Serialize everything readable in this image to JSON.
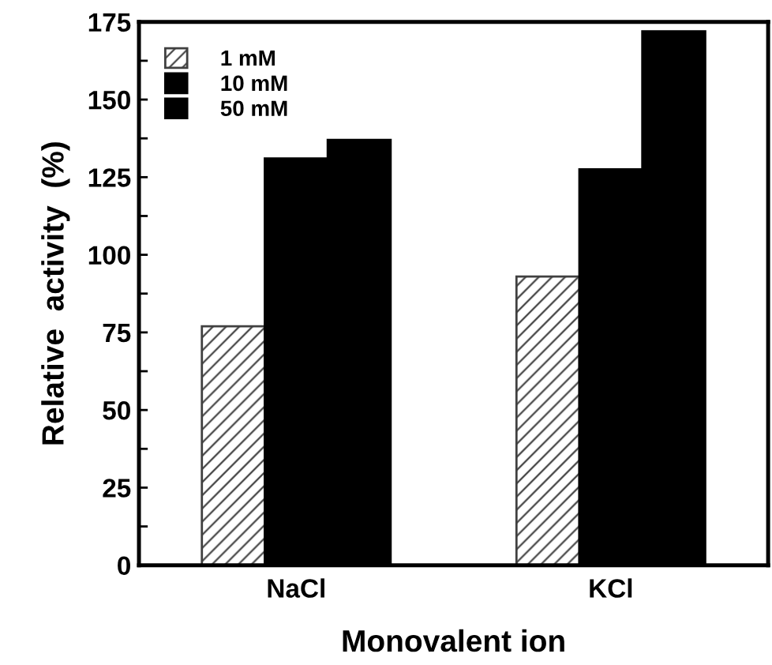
{
  "chart_data": {
    "type": "bar",
    "xlabel": "Monovalent ion",
    "ylabel": "Relative  activity  (%)",
    "categories": [
      "NaCl",
      "KCl"
    ],
    "series": [
      {
        "name": "1 mM",
        "color": "#404040",
        "values": [
          77,
          93
        ]
      },
      {
        "name": "10 mM",
        "color": "#000000",
        "values": [
          131,
          127.5
        ]
      },
      {
        "name": "50 mM",
        "color": "#000000",
        "values": [
          137,
          172
        ]
      }
    ],
    "ylim": [
      0,
      175
    ],
    "yticks": [
      0,
      25,
      50,
      75,
      100,
      125,
      150,
      175
    ],
    "grid": false,
    "legend": "top left"
  }
}
